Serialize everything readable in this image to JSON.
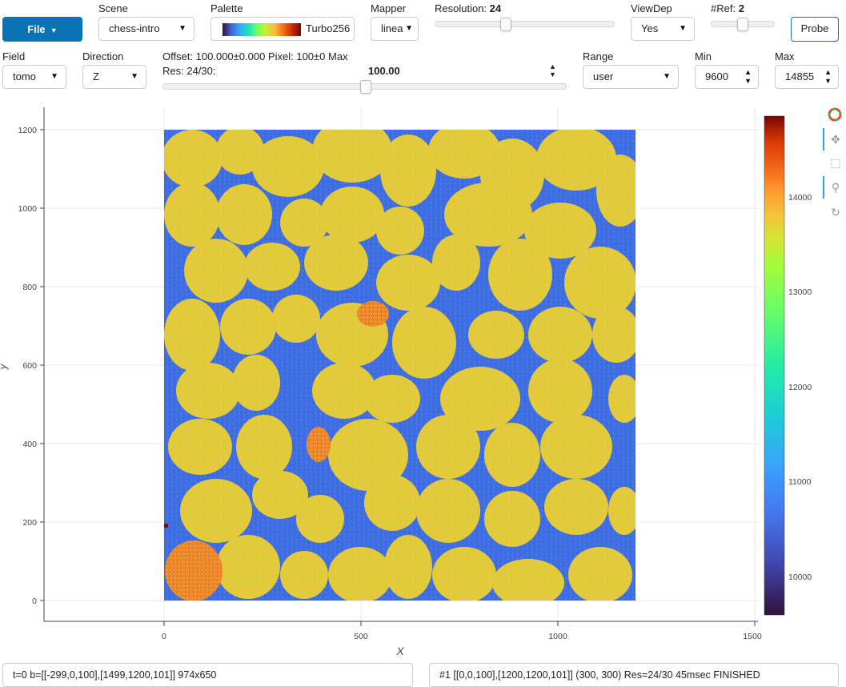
{
  "toolbar": {
    "file_label": "File",
    "scene": {
      "label": "Scene",
      "value": "chess-intro"
    },
    "palette": {
      "label": "Palette",
      "value": "Turbo256"
    },
    "mapper": {
      "label": "Mapper",
      "value": "linea"
    },
    "resolution": {
      "label": "Resolution:",
      "value": "24",
      "fraction": 0.44
    },
    "viewdep": {
      "label": "ViewDep",
      "value": "Yes"
    },
    "nref": {
      "label": "#Ref:",
      "value": "2",
      "fraction": 0.5
    },
    "probe_label": "Probe"
  },
  "controls": {
    "field": {
      "label": "Field",
      "value": "tomo"
    },
    "direction": {
      "label": "Direction",
      "value": "Z"
    },
    "offset_text": "Offset: 100.000±0.000 Pixel: 100±0 Max",
    "res_text": "Res: 24/30:",
    "offset_value": "100.00",
    "offset_fraction": 0.5,
    "range": {
      "label": "Range",
      "value": "user"
    },
    "min": {
      "label": "Min",
      "value": "9600"
    },
    "max": {
      "label": "Max",
      "value": "14855"
    }
  },
  "plot": {
    "xlabel": "X",
    "ylabel": "y",
    "x_ticks": [
      "0",
      "500",
      "1000",
      "1500"
    ],
    "y_ticks": [
      "0",
      "200",
      "400",
      "600",
      "800",
      "1000",
      "1200"
    ],
    "colorbar_ticks": [
      "10000",
      "11000",
      "12000",
      "13000",
      "14000"
    ],
    "colors": {
      "pore": "#3a6fe0",
      "grain": "#e6cd3c",
      "grain_edge": "#a9d94a",
      "hot": "#d94a1e"
    },
    "tools": [
      "bokeh-logo-icon",
      "pan-icon",
      "box-zoom-icon",
      "wheel-zoom-icon",
      "reset-icon"
    ]
  },
  "status": {
    "left": "t=0 b=[[-299,0,100],[1499,1200,101]] 974x650",
    "right": "#1 [[0,0,100],[1200,1200,101]] (300, 300) Res=24/30 45msec FINISHED"
  }
}
